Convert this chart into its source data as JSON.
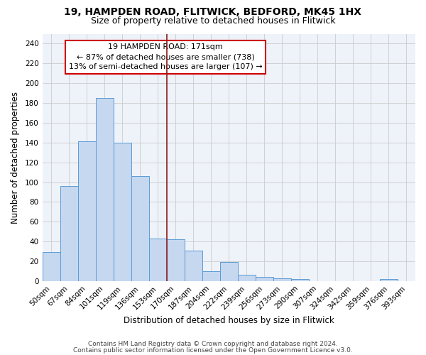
{
  "title_line1": "19, HAMPDEN ROAD, FLITWICK, BEDFORD, MK45 1HX",
  "title_line2": "Size of property relative to detached houses in Flitwick",
  "xlabel": "Distribution of detached houses by size in Flitwick",
  "ylabel": "Number of detached properties",
  "bar_labels": [
    "50sqm",
    "67sqm",
    "84sqm",
    "101sqm",
    "119sqm",
    "136sqm",
    "153sqm",
    "170sqm",
    "187sqm",
    "204sqm",
    "222sqm",
    "239sqm",
    "256sqm",
    "273sqm",
    "290sqm",
    "307sqm",
    "324sqm",
    "342sqm",
    "359sqm",
    "376sqm",
    "393sqm"
  ],
  "bar_values": [
    29,
    96,
    141,
    185,
    140,
    106,
    43,
    42,
    31,
    10,
    19,
    6,
    4,
    3,
    2,
    0,
    0,
    0,
    0,
    2,
    0
  ],
  "bar_color": "#c5d8f0",
  "bar_edge_color": "#5b9bd5",
  "grid_color": "#cccccc",
  "bg_color": "#eef2f9",
  "vline_color": "#8b1a1a",
  "annotation_text": "19 HAMPDEN ROAD: 171sqm\n← 87% of detached houses are smaller (738)\n13% of semi-detached houses are larger (107) →",
  "annotation_box_color": "white",
  "annotation_box_edge_color": "#cc0000",
  "ylim": [
    0,
    250
  ],
  "yticks": [
    0,
    20,
    40,
    60,
    80,
    100,
    120,
    140,
    160,
    180,
    200,
    220,
    240
  ],
  "footnote1": "Contains HM Land Registry data © Crown copyright and database right 2024.",
  "footnote2": "Contains public sector information licensed under the Open Government Licence v3.0.",
  "title_fontsize": 10,
  "subtitle_fontsize": 9,
  "axis_label_fontsize": 8.5,
  "tick_fontsize": 7.5,
  "annotation_fontsize": 8,
  "footnote_fontsize": 6.5
}
